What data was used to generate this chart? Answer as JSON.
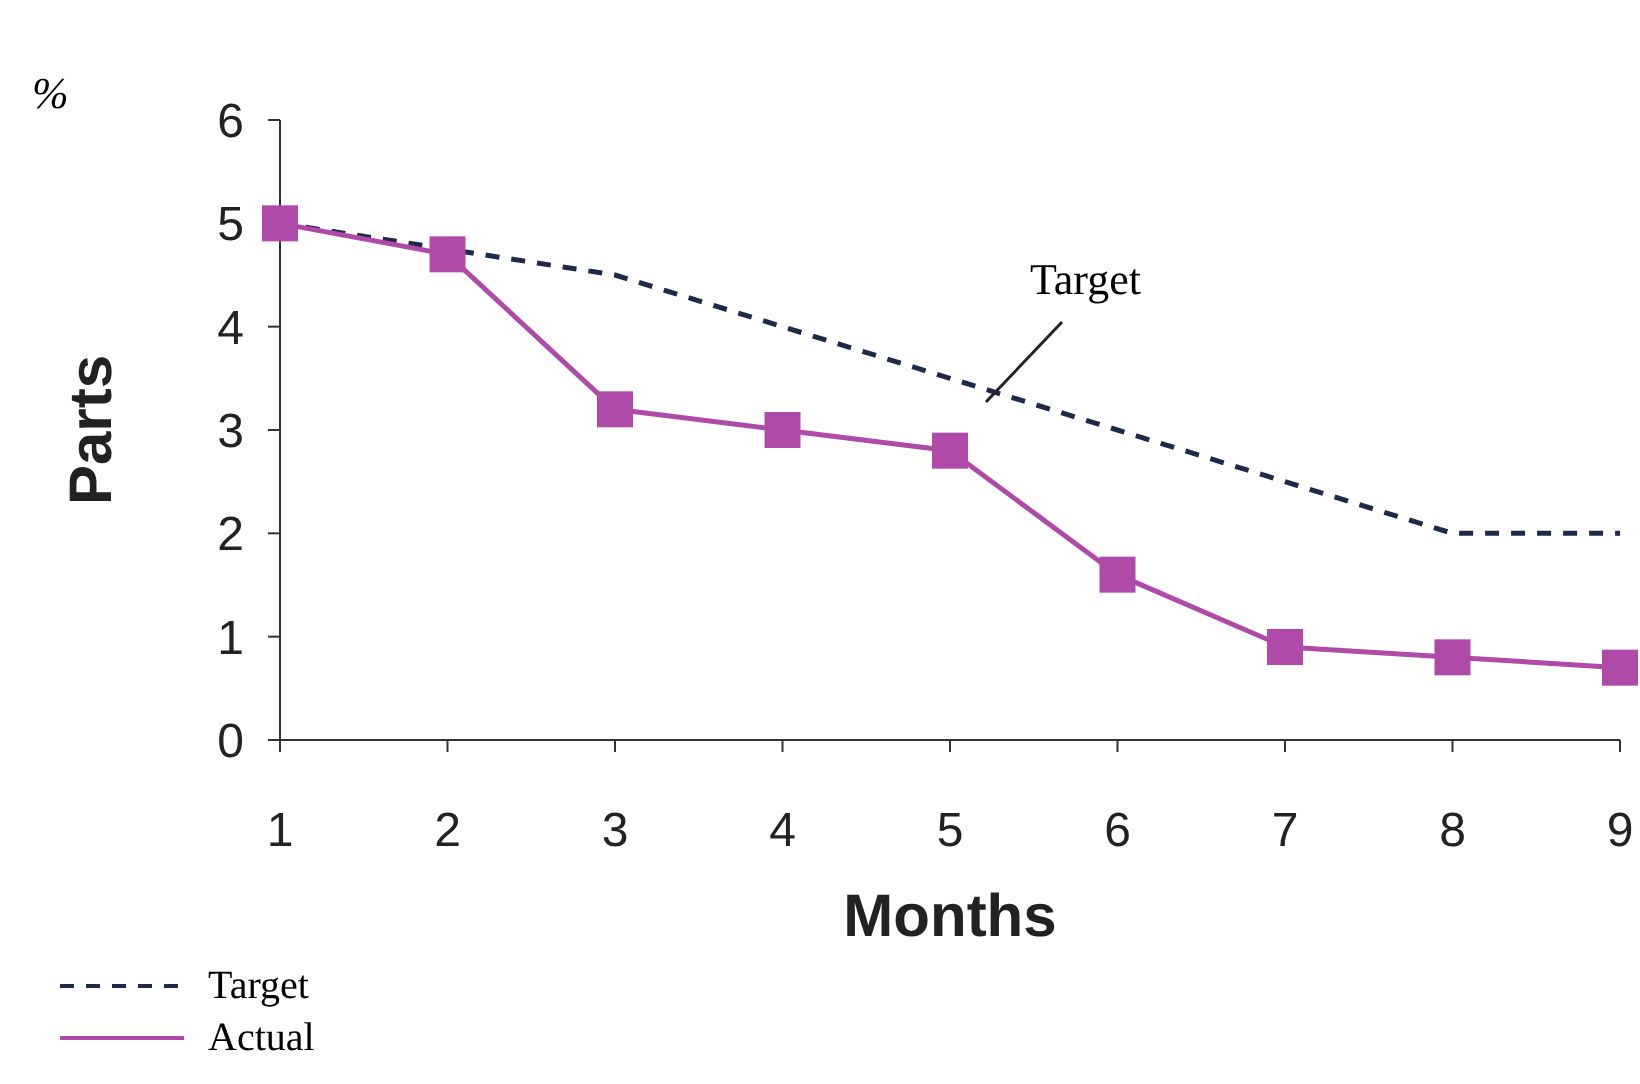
{
  "chart_data": {
    "type": "line",
    "xlabel": "Months",
    "ylabel": "Parts",
    "categories": [
      "1",
      "2",
      "3",
      "4",
      "5",
      "6",
      "7",
      "8",
      "9"
    ],
    "series": [
      {
        "name": "Target",
        "color": "#1f2a4a",
        "line_style": "dashed",
        "marker": "none",
        "values": [
          5,
          4.75,
          4.5,
          4,
          3.5,
          3,
          2.5,
          2,
          2
        ]
      },
      {
        "name": "Actual",
        "color": "#b04aa8",
        "line_style": "solid",
        "marker": "square",
        "values": [
          5,
          4.7,
          3.2,
          3,
          2.8,
          1.6,
          0.9,
          0.8,
          0.7
        ]
      }
    ],
    "ylim": [
      0,
      6
    ],
    "yticks": [
      0,
      1,
      2,
      3,
      4,
      5,
      6
    ],
    "grid": false,
    "legend": "bottom left",
    "annotations": [
      "%",
      {
        "text": "Target",
        "x": "5",
        "y": 3.5
      }
    ]
  }
}
